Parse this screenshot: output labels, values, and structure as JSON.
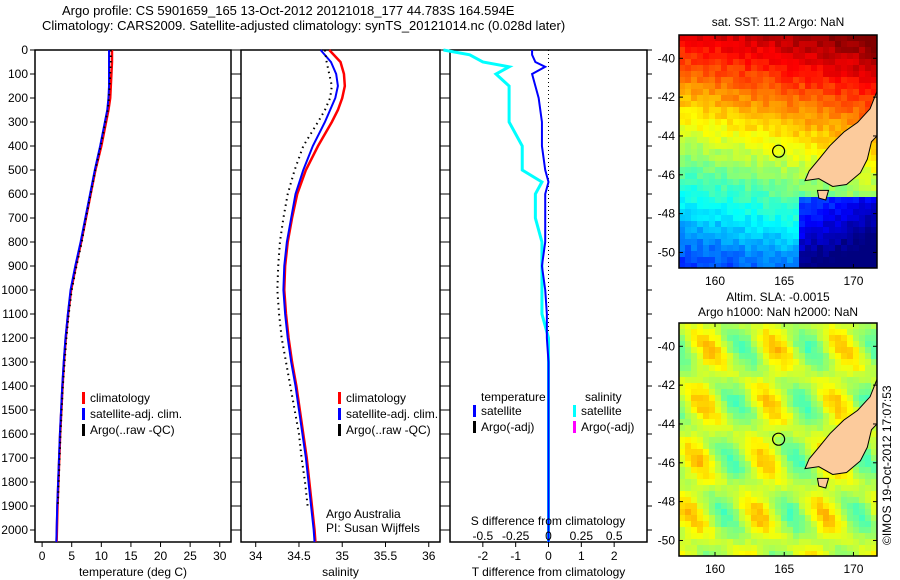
{
  "title_line1": "Argo profile: CS 5901659_165 13-Oct-2012 20121018_177 44.783S 164.594E",
  "title_line2": "Climatology: CARS2009. Satellite-adjusted climatology: synTS_20121014.nc (0.028d later)",
  "credit": "©IMOS 19-Oct-2012 17:07:53",
  "colors": {
    "climatology": "#ff0000",
    "satellite": "#0000ff",
    "argo": "#000000",
    "sal_sat": "#00ffff",
    "sal_argo": "#ff00ff",
    "land": "#fccb9c"
  },
  "chart_data": [
    {
      "type": "line",
      "id": "temp",
      "xlabel": "temperature (deg C)",
      "ylabel": "",
      "xlim": [
        -1.2,
        31.9
      ],
      "ylim": [
        0,
        2050
      ],
      "xticks": [
        0,
        5,
        10,
        15,
        20,
        25,
        30
      ],
      "yticks": [
        0,
        100,
        200,
        300,
        400,
        500,
        600,
        700,
        800,
        900,
        1000,
        1100,
        1200,
        1300,
        1400,
        1500,
        1600,
        1700,
        1800,
        1900,
        2000
      ],
      "legend": [
        "climatology",
        "satellite-adj. clim.",
        "Argo(..raw -QC)"
      ],
      "depth": [
        0,
        50,
        100,
        150,
        200,
        250,
        300,
        400,
        500,
        600,
        700,
        800,
        900,
        1000,
        1100,
        1200,
        1300,
        1400,
        1500,
        1600,
        1700,
        1800,
        1900,
        2000,
        2050
      ],
      "series": [
        {
          "name": "climatology",
          "values": [
            11.8,
            11.8,
            11.7,
            11.6,
            11.5,
            11.2,
            10.8,
            10.0,
            9.0,
            8.2,
            7.4,
            6.6,
            5.7,
            4.9,
            4.4,
            4.0,
            3.7,
            3.45,
            3.25,
            3.05,
            2.9,
            2.75,
            2.6,
            2.5,
            2.45
          ]
        },
        {
          "name": "satellite-adj. clim.",
          "values": [
            11.3,
            11.3,
            11.3,
            11.3,
            11.2,
            11.0,
            10.6,
            9.8,
            8.9,
            8.1,
            7.3,
            6.5,
            5.6,
            4.8,
            4.35,
            3.95,
            3.65,
            3.4,
            3.2,
            3.0,
            2.85,
            2.7,
            2.55,
            2.45,
            2.4
          ]
        },
        {
          "name": "Argo(..raw -QC)",
          "values": [
            11.6,
            11.6,
            11.5,
            11.4,
            11.3,
            11.1,
            10.7,
            9.9,
            9.0,
            8.2,
            7.4,
            6.7,
            5.8,
            5.0,
            4.5,
            4.1,
            3.8,
            3.5,
            3.3,
            3.1,
            2.95,
            2.8,
            2.65,
            null,
            null
          ]
        }
      ]
    },
    {
      "type": "line",
      "id": "sal",
      "xlabel": "salinity",
      "xlim": [
        33.83,
        36.13
      ],
      "ylim": [
        0,
        2050
      ],
      "xticks": [
        34,
        34.5,
        35,
        35.5,
        36
      ],
      "legend": [
        "climatology",
        "satellite-adj. clim.",
        "Argo(..raw -QC)"
      ],
      "annotations": [
        "Argo Australia",
        "PI: Susan Wijffels"
      ],
      "depth": [
        0,
        50,
        100,
        150,
        200,
        250,
        300,
        400,
        500,
        600,
        700,
        800,
        900,
        1000,
        1100,
        1200,
        1300,
        1400,
        1500,
        1600,
        1700,
        1800,
        1900,
        2000,
        2050
      ],
      "series": [
        {
          "name": "climatology",
          "values": [
            34.85,
            34.98,
            35.02,
            35.03,
            35.0,
            34.95,
            34.88,
            34.72,
            34.58,
            34.48,
            34.42,
            34.37,
            34.34,
            34.33,
            34.35,
            34.38,
            34.42,
            34.47,
            34.51,
            34.55,
            34.59,
            34.62,
            34.65,
            34.68,
            34.69
          ]
        },
        {
          "name": "satellite-adj. clim.",
          "values": [
            34.75,
            34.87,
            34.93,
            34.95,
            34.92,
            34.86,
            34.8,
            34.66,
            34.55,
            34.46,
            34.41,
            34.36,
            34.33,
            34.32,
            34.34,
            34.37,
            34.41,
            34.46,
            34.5,
            34.54,
            34.58,
            34.61,
            34.64,
            34.67,
            34.68
          ]
        },
        {
          "name": "Argo(..raw -QC)",
          "values": [
            34.8,
            34.82,
            34.85,
            34.88,
            34.86,
            34.8,
            34.72,
            34.55,
            34.45,
            34.37,
            34.32,
            34.28,
            34.26,
            34.25,
            34.27,
            34.3,
            34.35,
            34.4,
            34.45,
            34.5,
            34.53,
            34.57,
            34.6,
            null,
            null
          ]
        }
      ]
    },
    {
      "type": "line",
      "id": "diff",
      "xlabel": "T difference from climatology",
      "x2label": "S difference from climatology",
      "xlim": [
        -3,
        3
      ],
      "ylim": [
        0,
        2050
      ],
      "xticks": [
        -2,
        -1,
        0,
        1,
        2
      ],
      "x2ticks": [
        "-0.5",
        "-0.25",
        "0",
        "0.25",
        "0.5"
      ],
      "legend_temperature": "temperature",
      "legend_salinity": "salinity",
      "legend_labels": [
        "satellite",
        "Argo(-adj)"
      ],
      "depth": [
        0,
        20,
        50,
        70,
        100,
        150,
        200,
        300,
        400,
        500,
        550,
        600,
        700,
        800,
        900,
        1000,
        1100,
        1200,
        1300,
        1400,
        1500,
        1600,
        1700,
        1800,
        1900,
        2000,
        2050
      ],
      "series": [
        {
          "name": "temperature satellite",
          "values": [
            -0.5,
            -0.5,
            -0.4,
            -0.1,
            -0.5,
            -0.4,
            -0.3,
            -0.2,
            -0.2,
            -0.1,
            0,
            -0.1,
            -0.1,
            -0.1,
            -0.2,
            -0.1,
            -0.05,
            -0.05,
            0,
            0,
            0,
            0,
            0,
            0,
            0,
            0,
            0
          ]
        },
        {
          "name": "salinity satellite",
          "values": [
            -0.8,
            -0.6,
            -0.5,
            -0.3,
            -0.4,
            -0.3,
            -0.3,
            -0.3,
            -0.2,
            -0.2,
            -0.05,
            -0.1,
            -0.1,
            -0.05,
            -0.05,
            -0.05,
            -0.05,
            0,
            0,
            0,
            0,
            0,
            0,
            0,
            0,
            0,
            0
          ]
        }
      ]
    },
    {
      "type": "heatmap",
      "id": "sst",
      "title": "sat. SST: 11.2 Argo: NaN",
      "xlim": [
        157.4,
        171.7
      ],
      "ylim": [
        -50.8,
        -38.8
      ],
      "xticks": [
        160,
        165,
        170
      ],
      "yticks": [
        -40,
        -42,
        -44,
        -46,
        -48,
        -50
      ],
      "marker": [
        164.594,
        -44.783
      ]
    },
    {
      "type": "heatmap",
      "id": "sla",
      "title": "Altim. SLA: -0.0015",
      "subtitle": "Argo h1000: NaN h2000: NaN",
      "xlim": [
        157.4,
        171.7
      ],
      "ylim": [
        -50.8,
        -38.8
      ],
      "xticks": [
        160,
        165,
        170
      ],
      "yticks": [
        -40,
        -42,
        -44,
        -46,
        -48,
        -50
      ],
      "marker": [
        164.594,
        -44.783
      ]
    }
  ]
}
